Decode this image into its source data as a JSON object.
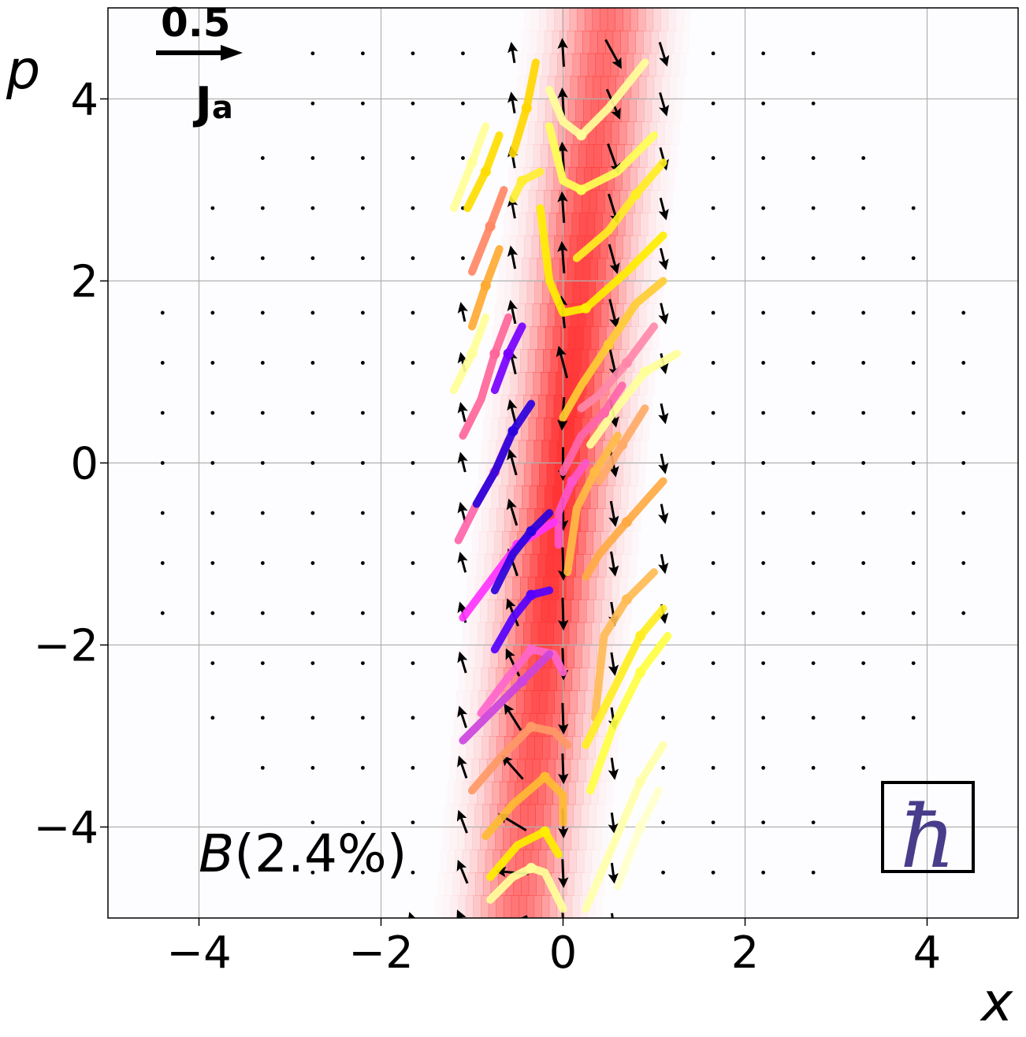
{
  "chart_data": {
    "type": "scatter",
    "subtype": "phase-space quiver with density and trajectories",
    "xlabel": "x",
    "ylabel": "p",
    "xlim": [
      -5,
      5
    ],
    "ylim": [
      -5,
      5
    ],
    "xticks": [
      -4,
      -2,
      0,
      2,
      4
    ],
    "yticks": [
      -4,
      -2,
      0,
      2,
      4
    ],
    "xtick_labels": [
      "−4",
      "−2",
      "0",
      "2",
      "4"
    ],
    "ytick_labels": [
      "−4",
      "−2",
      "0",
      "2",
      "4"
    ],
    "grid": true,
    "annotation": {
      "label": "B",
      "percent": "(2.4%)"
    },
    "quiver_key": {
      "value": "0.5",
      "symbol": "J",
      "subscript": "a"
    },
    "hbar_symbol": "ħ",
    "colors": {
      "density": "#ff3333",
      "arrows": "#000000",
      "hbar": "#483d8b",
      "trajectory_low": "#ffff99",
      "trajectory_mid": "#ff8c69",
      "trajectory_high": "#2200dd"
    },
    "density": {
      "center_x": 0.0,
      "width_x": 0.45,
      "slope": 0.1
    },
    "arrow_field": {
      "grid_x": [
        -4.4,
        -3.85,
        -3.3,
        -2.75,
        -2.2,
        -1.65,
        -1.1,
        -0.55,
        0.0,
        0.55,
        1.1,
        1.65,
        2.2,
        2.75,
        3.3,
        3.85,
        4.4
      ],
      "grid_p": [
        4.5,
        3.95,
        3.35,
        2.8,
        2.25,
        1.65,
        1.1,
        0.55,
        0.0,
        -0.55,
        -1.1,
        -1.65,
        -2.2,
        -2.8,
        -3.35,
        -3.95,
        -4.5,
        -5.05
      ]
    },
    "trajectories": [
      {
        "points": [
          [
            -1.2,
            0.8
          ],
          [
            -1.0,
            1.2
          ],
          [
            -0.85,
            1.6
          ]
        ],
        "color": "#ffff99"
      },
      {
        "points": [
          [
            -1.1,
            0.3
          ],
          [
            -0.9,
            0.7
          ],
          [
            -0.75,
            1.2
          ],
          [
            -0.6,
            1.6
          ]
        ],
        "color": "#ff6699"
      },
      {
        "points": [
          [
            -0.75,
            0.8
          ],
          [
            -0.6,
            1.2
          ],
          [
            -0.45,
            1.5
          ]
        ],
        "color": "#7700ff"
      },
      {
        "points": [
          [
            -1.0,
            1.5
          ],
          [
            -0.85,
            1.95
          ],
          [
            -0.7,
            2.35
          ]
        ],
        "color": "#ffaa33"
      },
      {
        "points": [
          [
            -1.0,
            2.1
          ],
          [
            -0.8,
            2.6
          ],
          [
            -0.65,
            3.0
          ]
        ],
        "color": "#ff8866"
      },
      {
        "points": [
          [
            -1.05,
            2.8
          ],
          [
            -0.85,
            3.2
          ],
          [
            -0.7,
            3.6
          ]
        ],
        "color": "#ffdd00"
      },
      {
        "points": [
          [
            -1.2,
            2.8
          ],
          [
            -1.0,
            3.3
          ],
          [
            -0.85,
            3.7
          ]
        ],
        "color": "#ffff99"
      },
      {
        "points": [
          [
            -0.55,
            3.4
          ],
          [
            -0.4,
            3.9
          ],
          [
            -0.3,
            4.4
          ]
        ],
        "color": "#ffd700"
      },
      {
        "points": [
          [
            -0.55,
            2.9
          ],
          [
            -0.45,
            3.1
          ],
          [
            -0.25,
            3.2
          ]
        ],
        "color": "#ffee33"
      },
      {
        "points": [
          [
            -0.15,
            4.1
          ],
          [
            0.0,
            3.75
          ],
          [
            0.2,
            3.6
          ],
          [
            0.5,
            3.9
          ],
          [
            0.9,
            4.4
          ]
        ],
        "color": "#ffff99"
      },
      {
        "points": [
          [
            -0.15,
            3.7
          ],
          [
            0.0,
            3.1
          ],
          [
            0.2,
            3.0
          ],
          [
            0.6,
            3.2
          ],
          [
            1.0,
            3.6
          ]
        ],
        "color": "#ffff55"
      },
      {
        "points": [
          [
            -0.25,
            2.8
          ],
          [
            -0.15,
            2.0
          ],
          [
            0.0,
            1.65
          ],
          [
            0.25,
            1.7
          ],
          [
            0.7,
            2.1
          ],
          [
            1.1,
            2.5
          ]
        ],
        "color": "#ffee00"
      },
      {
        "points": [
          [
            0.15,
            2.25
          ],
          [
            0.5,
            2.55
          ],
          [
            0.8,
            2.95
          ],
          [
            1.1,
            3.3
          ]
        ],
        "color": "#ffee22"
      },
      {
        "points": [
          [
            0.0,
            0.5
          ],
          [
            0.2,
            0.85
          ],
          [
            0.5,
            1.3
          ],
          [
            0.8,
            1.75
          ],
          [
            1.1,
            2.0
          ]
        ],
        "color": "#ffcc33"
      },
      {
        "points": [
          [
            0.2,
            0.6
          ],
          [
            0.4,
            0.75
          ],
          [
            0.7,
            1.1
          ],
          [
            1.0,
            1.5
          ]
        ],
        "color": "#ff88aa"
      },
      {
        "points": [
          [
            0.3,
            0.2
          ],
          [
            0.55,
            0.55
          ],
          [
            0.9,
            1.0
          ],
          [
            1.25,
            1.2
          ]
        ],
        "color": "#ffff99"
      },
      {
        "points": [
          [
            0.0,
            -0.1
          ],
          [
            0.2,
            0.3
          ],
          [
            0.45,
            0.55
          ],
          [
            0.65,
            0.85
          ]
        ],
        "color": "#ff66aa"
      },
      {
        "points": [
          [
            0.4,
            -0.2
          ],
          [
            0.65,
            0.2
          ],
          [
            0.9,
            0.6
          ]
        ],
        "color": "#ffaa66"
      },
      {
        "points": [
          [
            -1.15,
            -0.85
          ],
          [
            -0.95,
            -0.45
          ],
          [
            -0.75,
            -0.1
          ],
          [
            -0.6,
            0.25
          ]
        ],
        "color": "#ff66aa"
      },
      {
        "points": [
          [
            -0.95,
            -0.45
          ],
          [
            -0.75,
            -0.1
          ],
          [
            -0.55,
            0.35
          ],
          [
            -0.35,
            0.65
          ]
        ],
        "color": "#2a00dd"
      },
      {
        "points": [
          [
            -0.05,
            -0.9
          ],
          [
            -0.05,
            -0.55
          ],
          [
            0.1,
            -0.2
          ],
          [
            0.25,
            0.0
          ]
        ],
        "color": "#ff55cc"
      },
      {
        "points": [
          [
            0.05,
            -1.2
          ],
          [
            0.15,
            -0.5
          ],
          [
            0.35,
            -0.1
          ],
          [
            0.6,
            0.3
          ]
        ],
        "color": "#ffbb44"
      },
      {
        "points": [
          [
            -1.1,
            -1.7
          ],
          [
            -0.8,
            -1.3
          ],
          [
            -0.5,
            -0.9
          ],
          [
            -0.1,
            -0.65
          ]
        ],
        "color": "#ff33ff"
      },
      {
        "points": [
          [
            -0.75,
            -1.4
          ],
          [
            -0.55,
            -1.0
          ],
          [
            -0.35,
            -0.75
          ],
          [
            -0.15,
            -0.55
          ]
        ],
        "color": "#2a00dd"
      },
      {
        "points": [
          [
            -0.75,
            -2.05
          ],
          [
            -0.55,
            -1.7
          ],
          [
            -0.35,
            -1.45
          ],
          [
            -0.15,
            -1.4
          ]
        ],
        "color": "#5500ff"
      },
      {
        "points": [
          [
            -0.9,
            -2.75
          ],
          [
            -0.6,
            -2.35
          ],
          [
            -0.35,
            -2.05
          ],
          [
            -0.1,
            -2.1
          ],
          [
            0.0,
            -2.3
          ]
        ],
        "color": "#ff66cc"
      },
      {
        "points": [
          [
            -1.1,
            -3.05
          ],
          [
            -0.75,
            -2.7
          ],
          [
            -0.45,
            -2.4
          ],
          [
            -0.15,
            -2.1
          ]
        ],
        "color": "#cc44dd"
      },
      {
        "points": [
          [
            -1.0,
            -3.6
          ],
          [
            -0.7,
            -3.25
          ],
          [
            -0.35,
            -2.9
          ],
          [
            -0.1,
            -2.95
          ],
          [
            0.05,
            -3.1
          ]
        ],
        "color": "#ff9966"
      },
      {
        "points": [
          [
            -0.85,
            -4.1
          ],
          [
            -0.55,
            -3.75
          ],
          [
            -0.2,
            -3.45
          ],
          [
            0.0,
            -3.65
          ],
          [
            0.0,
            -3.95
          ]
        ],
        "color": "#ffbb33"
      },
      {
        "points": [
          [
            -0.8,
            -4.55
          ],
          [
            -0.5,
            -4.2
          ],
          [
            -0.2,
            -4.05
          ],
          [
            -0.05,
            -4.3
          ]
        ],
        "color": "#ffee00"
      },
      {
        "points": [
          [
            -0.8,
            -4.8
          ],
          [
            -0.55,
            -4.55
          ],
          [
            -0.35,
            -4.45
          ],
          [
            -0.2,
            -4.5
          ],
          [
            0.0,
            -4.9
          ]
        ],
        "color": "#ffff99"
      },
      {
        "points": [
          [
            0.25,
            -1.25
          ],
          [
            0.4,
            -1.0
          ],
          [
            0.7,
            -0.65
          ],
          [
            1.1,
            -0.2
          ]
        ],
        "color": "#ffaa44"
      },
      {
        "points": [
          [
            0.35,
            -2.8
          ],
          [
            0.45,
            -1.9
          ],
          [
            0.7,
            -1.5
          ],
          [
            1.0,
            -1.2
          ]
        ],
        "color": "#ffbb55"
      },
      {
        "points": [
          [
            0.25,
            -3.1
          ],
          [
            0.55,
            -2.5
          ],
          [
            0.85,
            -1.9
          ],
          [
            1.1,
            -1.6
          ]
        ],
        "color": "#ffee22"
      },
      {
        "points": [
          [
            0.3,
            -3.6
          ],
          [
            0.55,
            -2.9
          ],
          [
            0.85,
            -2.3
          ],
          [
            1.15,
            -1.9
          ]
        ],
        "color": "#ffff44"
      },
      {
        "points": [
          [
            0.25,
            -4.9
          ],
          [
            0.55,
            -4.2
          ],
          [
            0.85,
            -3.5
          ],
          [
            1.1,
            -3.1
          ]
        ],
        "color": "#ffffaa"
      },
      {
        "points": [
          [
            0.6,
            -4.65
          ],
          [
            0.85,
            -4.0
          ],
          [
            1.05,
            -3.6
          ]
        ],
        "color": "#ffffcc"
      }
    ]
  }
}
